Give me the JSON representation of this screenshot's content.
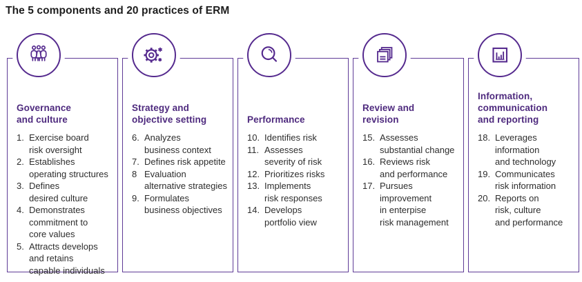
{
  "page_title": "The 5 components and 20 practices of ERM",
  "theme": {
    "icon_purple": "#552a8e",
    "heading_purple": "#4e2a7e",
    "border_purple": "#5e3a96",
    "body_text": "#2d2d2d",
    "title_text": "#1d1d1d"
  },
  "columns": [
    {
      "icon": "people-group-icon",
      "title": "Governance\nand culture",
      "items": [
        {
          "num": "1.",
          "text": "Exercise board\nrisk oversight"
        },
        {
          "num": "2.",
          "text": "Establishes\noperating structures"
        },
        {
          "num": "3.",
          "text": "Defines\ndesired culture"
        },
        {
          "num": "4.",
          "text": "Demonstrates\ncommitment to\ncore values"
        },
        {
          "num": "5.",
          "text": "Attracts develops\nand retains\ncapable individuals"
        }
      ]
    },
    {
      "icon": "gear-icon",
      "title": "Strategy and\nobjective setting",
      "items": [
        {
          "num": "6.",
          "text": "Analyzes\nbusiness context"
        },
        {
          "num": "7.",
          "text": "Defines risk appetite"
        },
        {
          "num": "8",
          "text": "Evaluation\nalternative strategies"
        },
        {
          "num": "9.",
          "text": "Formulates\nbusiness objectives"
        }
      ]
    },
    {
      "icon": "magnifier-icon",
      "title": "Performance",
      "items": [
        {
          "num": "10.",
          "text": "Identifies risk"
        },
        {
          "num": "11.",
          "text": "Assesses\nseverity of risk"
        },
        {
          "num": "12.",
          "text": "Prioritizes risks"
        },
        {
          "num": "13.",
          "text": "Implements\nrisk responses"
        },
        {
          "num": "14.",
          "text": "Develops\nportfolio view"
        }
      ]
    },
    {
      "icon": "stacked-documents-icon",
      "title": "Review and\nrevision",
      "items": [
        {
          "num": "15.",
          "text": "Assesses\nsubstantial change"
        },
        {
          "num": "16.",
          "text": "Reviews risk\nand performance"
        },
        {
          "num": "17.",
          "text": "Pursues\nimprovement\nin enterpise\nrisk management"
        }
      ]
    },
    {
      "icon": "bar-chart-icon",
      "title": "Information,\ncommunication\nand reporting",
      "items": [
        {
          "num": "18.",
          "text": "Leverages\ninformation\nand technology"
        },
        {
          "num": "19.",
          "text": "Communicates\nrisk information"
        },
        {
          "num": "20.",
          "text": "Reports on\nrisk, culture\nand performance"
        }
      ]
    }
  ]
}
